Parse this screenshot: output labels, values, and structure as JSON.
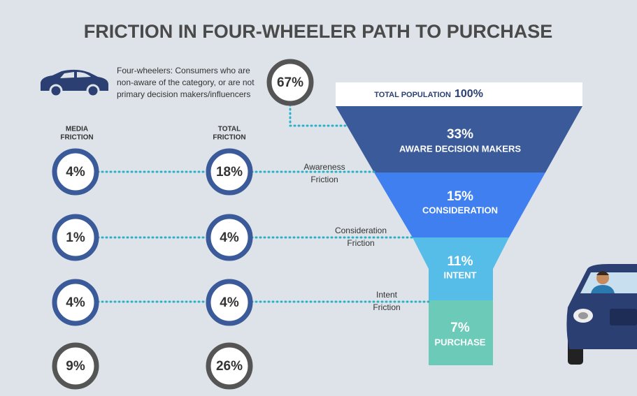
{
  "title": "FRICTION IN FOUR-WHEELER PATH TO PURCHASE",
  "note": {
    "lines": [
      "Four-wheelers: Consumers who are",
      "non-aware of the category, or are not",
      "primary decision makers/influencers"
    ],
    "value": "67%"
  },
  "headers": {
    "media": [
      "MEDIA",
      "FRICTION"
    ],
    "total": [
      "TOTAL",
      "FRICTION"
    ]
  },
  "rows": [
    {
      "media": "4%",
      "total": "18%",
      "label": [
        "Awareness",
        "Friction"
      ]
    },
    {
      "media": "1%",
      "total": "4%",
      "label": [
        "Consideration",
        "Friction"
      ]
    },
    {
      "media": "4%",
      "total": "4%",
      "label": [
        "Intent",
        "Friction"
      ]
    }
  ],
  "sum": {
    "media": "9%",
    "total": "26%"
  },
  "funnel": {
    "top_label": "TOTAL POPULATION",
    "top_value": "100%",
    "stages": [
      {
        "value": "33%",
        "label": "AWARE DECISION MAKERS"
      },
      {
        "value": "15%",
        "label": "CONSIDERATION"
      },
      {
        "value": "11%",
        "label": "INTENT"
      },
      {
        "value": "7%",
        "label": "PURCHASE"
      }
    ]
  }
}
